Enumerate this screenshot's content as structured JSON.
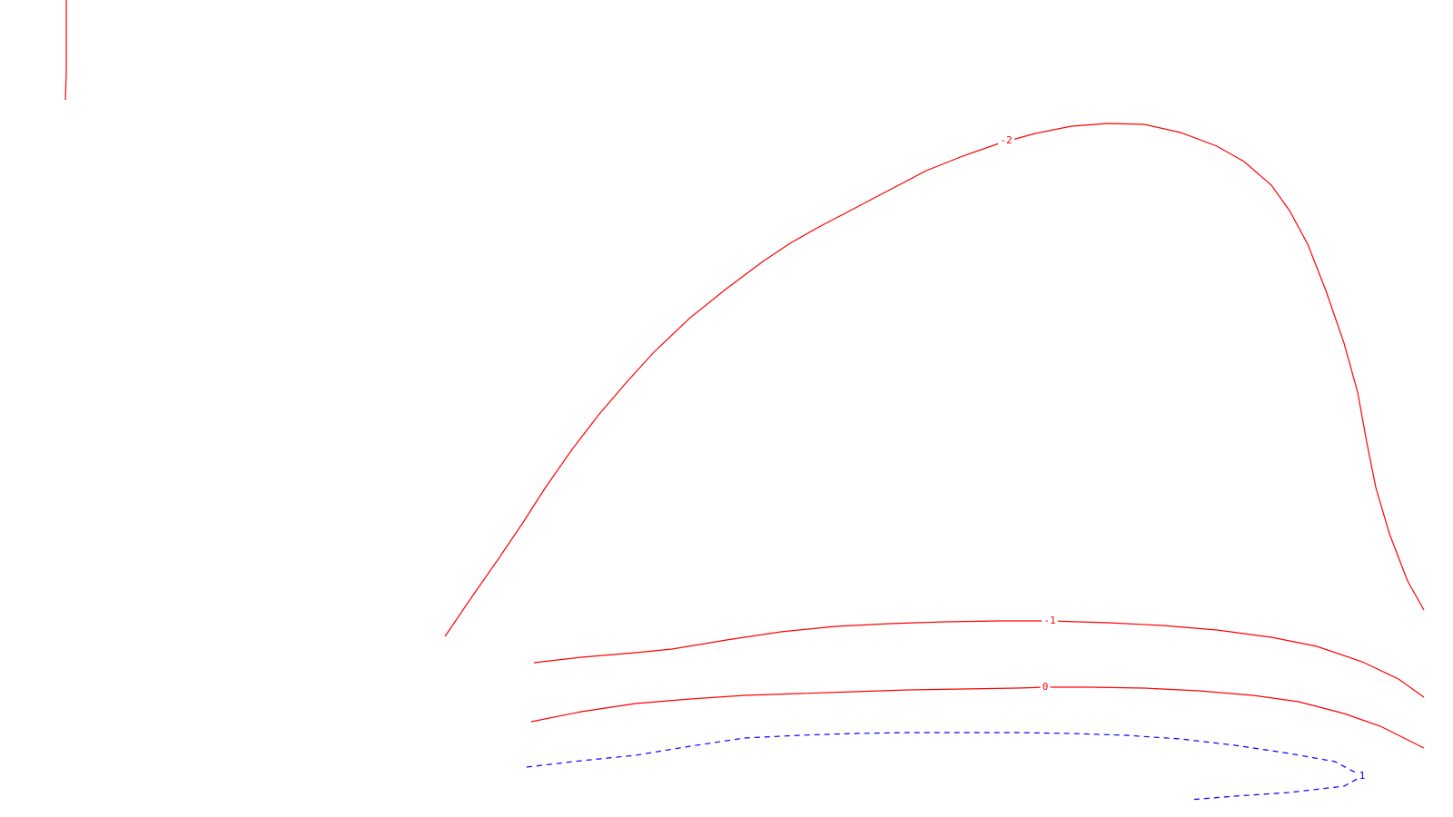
{
  "chart_data": {
    "type": "contour",
    "title": "",
    "xlabel": "",
    "ylabel": "",
    "grid": false,
    "legend": "none",
    "series": [
      {
        "level": "-2",
        "label": "-2",
        "color": "#ff0000",
        "style": "solid",
        "points": [
          [
            490,
            701
          ],
          [
            520,
            657
          ],
          [
            550,
            614
          ],
          [
            575,
            577
          ],
          [
            600,
            538
          ],
          [
            630,
            495
          ],
          [
            660,
            456
          ],
          [
            690,
            421
          ],
          [
            720,
            388
          ],
          [
            760,
            350
          ],
          [
            800,
            318
          ],
          [
            840,
            288
          ],
          [
            870,
            268
          ],
          [
            900,
            251
          ],
          [
            940,
            230
          ],
          [
            980,
            209
          ],
          [
            1020,
            188
          ],
          [
            1060,
            172
          ],
          [
            1100,
            158
          ],
          [
            1140,
            147
          ],
          [
            1180,
            139
          ],
          [
            1220,
            136
          ],
          [
            1260,
            137
          ],
          [
            1300,
            146
          ],
          [
            1340,
            161
          ],
          [
            1370,
            178
          ],
          [
            1400,
            204
          ],
          [
            1420,
            232
          ],
          [
            1440,
            269
          ],
          [
            1460,
            320
          ],
          [
            1480,
            378
          ],
          [
            1495,
            432
          ],
          [
            1505,
            487
          ],
          [
            1515,
            537
          ],
          [
            1530,
            588
          ],
          [
            1550,
            640
          ],
          [
            1568,
            672
          ]
        ],
        "label_position": [
          1108,
          155
        ]
      },
      {
        "level": "-1",
        "label": "-1",
        "color": "#ff0000",
        "style": "solid",
        "points": [
          [
            588,
            730
          ],
          [
            640,
            724
          ],
          [
            700,
            719
          ],
          [
            740,
            715
          ],
          [
            800,
            705
          ],
          [
            860,
            696
          ],
          [
            920,
            690
          ],
          [
            980,
            687
          ],
          [
            1040,
            685
          ],
          [
            1100,
            684
          ],
          [
            1156,
            684
          ],
          [
            1220,
            686
          ],
          [
            1280,
            689
          ],
          [
            1340,
            694
          ],
          [
            1400,
            702
          ],
          [
            1450,
            712
          ],
          [
            1500,
            729
          ],
          [
            1540,
            748
          ],
          [
            1568,
            768
          ]
        ],
        "label_position": [
          1156,
          684
        ]
      },
      {
        "level": "0",
        "label": "0",
        "color": "#ff0000",
        "style": "solid",
        "points": [
          [
            585,
            795
          ],
          [
            640,
            784
          ],
          [
            700,
            775
          ],
          [
            760,
            770
          ],
          [
            820,
            766
          ],
          [
            880,
            764
          ],
          [
            940,
            762
          ],
          [
            1000,
            760
          ],
          [
            1060,
            759
          ],
          [
            1120,
            758
          ],
          [
            1151,
            757
          ],
          [
            1200,
            757
          ],
          [
            1260,
            758
          ],
          [
            1320,
            761
          ],
          [
            1380,
            766
          ],
          [
            1430,
            773
          ],
          [
            1480,
            786
          ],
          [
            1520,
            800
          ],
          [
            1568,
            824
          ]
        ],
        "label_position": [
          1151,
          757
        ]
      },
      {
        "level": "1",
        "label": "1",
        "color": "#0000ff",
        "style": "dashed",
        "points": [
          [
            580,
            845
          ],
          [
            640,
            838
          ],
          [
            700,
            832
          ],
          [
            760,
            822
          ],
          [
            820,
            813
          ],
          [
            880,
            810
          ],
          [
            940,
            808
          ],
          [
            1000,
            807
          ],
          [
            1060,
            807
          ],
          [
            1120,
            807
          ],
          [
            1180,
            808
          ],
          [
            1240,
            810
          ],
          [
            1300,
            814
          ],
          [
            1360,
            821
          ],
          [
            1420,
            830
          ],
          [
            1470,
            839
          ],
          [
            1500,
            855
          ],
          [
            1480,
            866
          ],
          [
            1420,
            873
          ],
          [
            1360,
            877
          ],
          [
            1310,
            881
          ]
        ],
        "label_position": [
          1500,
          855
        ]
      },
      {
        "level": "-2",
        "label": "",
        "color": "#ff0000",
        "style": "solid",
        "points": [
          [
            73,
            0
          ],
          [
            73,
            40
          ],
          [
            73,
            80
          ],
          [
            72,
            110
          ]
        ],
        "label_position": null
      }
    ]
  }
}
